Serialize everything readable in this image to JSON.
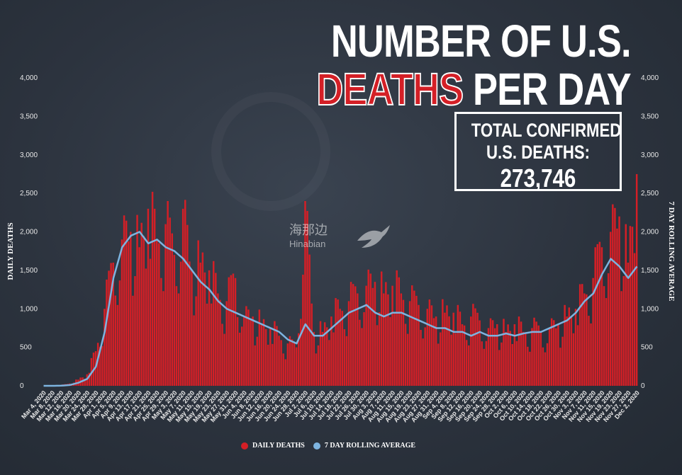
{
  "title": {
    "line1": "NUMBER OF U.S.",
    "line2_red": "DEATHS",
    "line2_white": "PER DAY"
  },
  "total_box": {
    "line1": "TOTAL CONFIRMED",
    "line2": "U.S. DEATHS:",
    "value": "273,746"
  },
  "watermark": {
    "cn": "海那边",
    "en": "Hinabian"
  },
  "colors": {
    "bar": "#d41f26",
    "line": "#7db4e0",
    "background": "#2e3643"
  },
  "legend": [
    {
      "label": "DAILY DEATHS",
      "color": "#d41f26"
    },
    {
      "label": "7 DAY ROLLING AVERAGE",
      "color": "#7db4e0"
    }
  ],
  "chart_data": {
    "type": "bar",
    "xlabel": "",
    "ylabel_left": "DAILY DEATHS",
    "ylabel_right": "7 DAY ROLLING AVERAGE",
    "ylim": [
      0,
      4000
    ],
    "yticks": [
      "0",
      "500",
      "1,000",
      "1,500",
      "2,000",
      "2,500",
      "3,000",
      "3,500",
      "4,000"
    ],
    "x_tick_labels": [
      "Mar 4, 2020",
      "Mar 8, 2020",
      "Mar 12, 2020",
      "Mar 16, 2020",
      "Mar 20, 2020",
      "Mar 24, 2020",
      "Mar 28, 2020",
      "Apr 1, 2020",
      "Apr 5, 2020",
      "Apr 9, 2020",
      "Apr 13, 2020",
      "Apr 17, 2020",
      "Apr 21, 2020",
      "Apr 25, 2020",
      "Apr 29, 2020",
      "May 3, 2020",
      "May 7, 2020",
      "May 11, 2020",
      "May 15, 2020",
      "May 19, 2020",
      "May 23, 2020",
      "May 27, 2020",
      "May 31, 2020",
      "Jun 4, 2020",
      "Jun 8, 2020",
      "Jun 12, 2020",
      "Jun 16, 2020",
      "Jun 20, 2020",
      "Jun 24, 2020",
      "Jun 28, 2020",
      "Jul 2, 2020",
      "Jul 6, 2020",
      "Jul 10, 2020",
      "Jul 14, 2020",
      "Jul 18, 2020",
      "Jul 22, 2020",
      "Jul 26, 2020",
      "Jul 30, 2020",
      "Aug 3, 2020",
      "Aug 7, 2020",
      "Aug 11, 2020",
      "Aug 15, 2020",
      "Aug 19, 2020",
      "Aug 23, 2020",
      "Aug 27, 2020",
      "Aug 31, 2020",
      "Sep 4, 2020",
      "Sep 8, 2020",
      "Sep 12, 2020",
      "Sep 16, 2020",
      "Sep 20, 2020",
      "Sep 24, 2020",
      "Sep 28, 2020",
      "Oct 2, 2020",
      "Oct 6, 2020",
      "Oct 10, 2020",
      "Oct 14, 2020",
      "Oct 18, 2020",
      "Oct 22, 2020",
      "Oct 26, 2020",
      "Oct 30, 2020",
      "Nov 3, 2020",
      "Nov 7, 2020",
      "Nov 11, 2020",
      "Nov 15, 2020",
      "Nov 19, 2020",
      "Nov 23, 2020",
      "Nov 27, 2020",
      "Dec 2, 2020"
    ],
    "x_start": "2020-03-04",
    "x_end": "2020-12-02",
    "series": [
      {
        "name": "DAILY DEATHS",
        "kind": "bar",
        "values_every_4_days": [
          0,
          5,
          10,
          30,
          80,
          150,
          450,
          1000,
          1600,
          1900,
          2000,
          1800,
          2300,
          1900,
          2100,
          1700,
          2300,
          1500,
          1600,
          1500,
          1200,
          1100,
          1400,
          900,
          900,
          800,
          750,
          650,
          550,
          500,
          2400,
          700,
          700,
          900,
          1000,
          1100,
          1200,
          1300,
          1350,
          1200,
          1300,
          1200,
          1100,
          1050,
          1000,
          900,
          950,
          950,
          800,
          900,
          850,
          750,
          800,
          700,
          800,
          700,
          750,
          700,
          750,
          800,
          900,
          1000,
          1200,
          1400,
          1800,
          2000,
          2200,
          1600,
          2750
        ]
      },
      {
        "name": "7 DAY ROLLING AVERAGE",
        "kind": "line",
        "values_every_4_days": [
          0,
          0,
          2,
          10,
          40,
          90,
          250,
          700,
          1400,
          1800,
          1950,
          2000,
          1850,
          1900,
          1800,
          1750,
          1650,
          1500,
          1350,
          1250,
          1100,
          1000,
          950,
          900,
          850,
          800,
          750,
          700,
          600,
          550,
          800,
          650,
          650,
          750,
          850,
          950,
          1000,
          1050,
          950,
          900,
          950,
          950,
          900,
          850,
          800,
          750,
          750,
          700,
          700,
          650,
          700,
          650,
          650,
          680,
          650,
          680,
          700,
          700,
          750,
          800,
          850,
          950,
          1100,
          1200,
          1450,
          1650,
          1550,
          1400,
          1550
        ]
      }
    ]
  }
}
